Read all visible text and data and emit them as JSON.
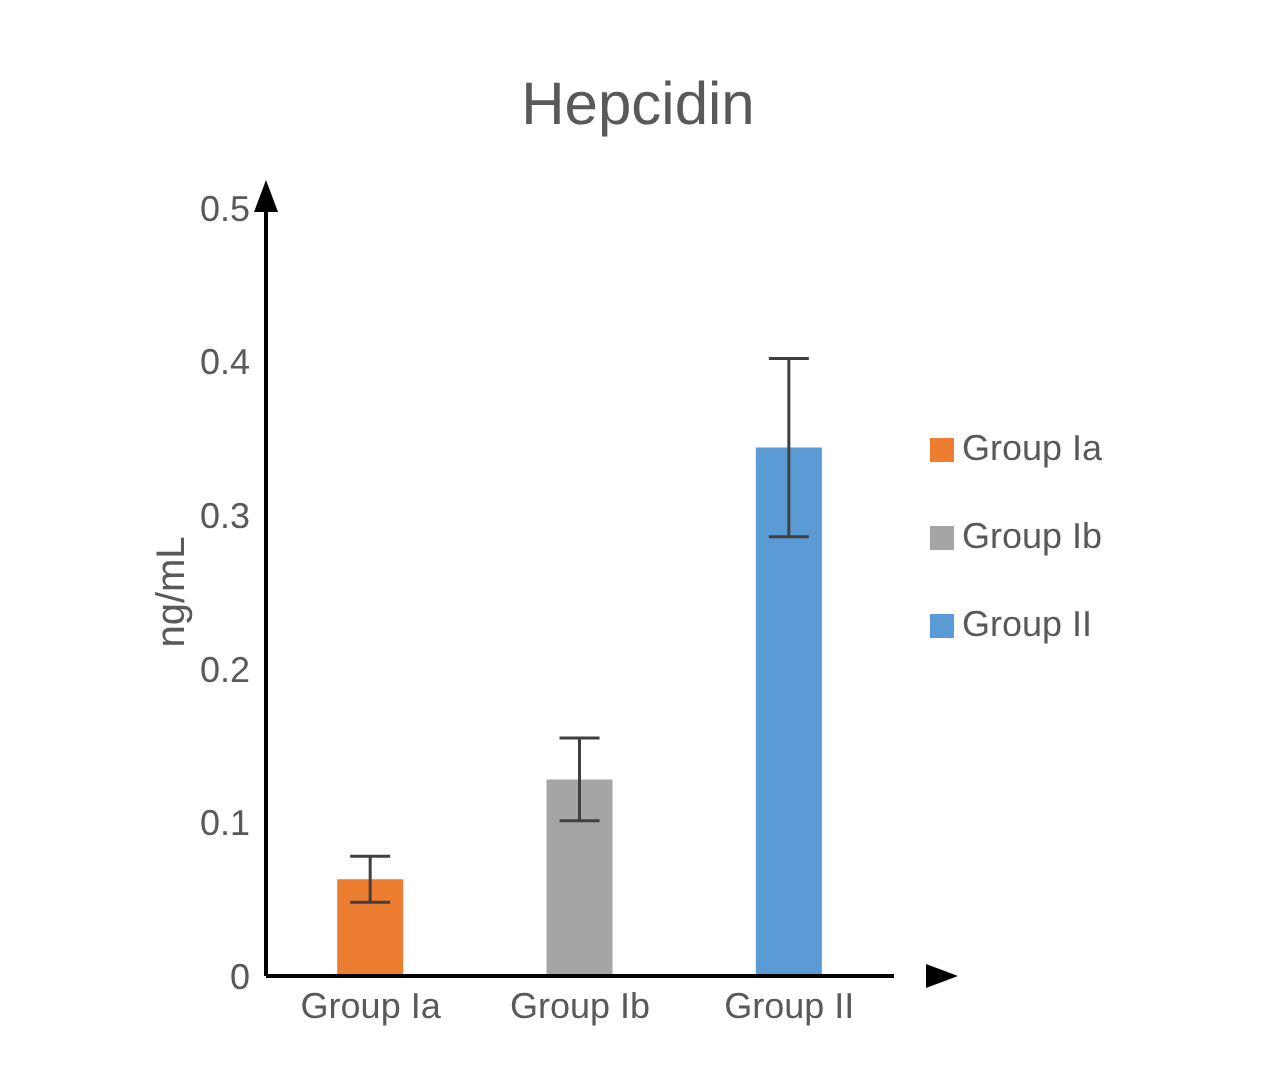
{
  "chart_data": {
    "type": "bar",
    "title": "Hepcidin",
    "ylabel": "ng/mL",
    "categories": [
      "Group Ia",
      "Group Ib",
      "Group II"
    ],
    "series": [
      {
        "name": "Group Ia",
        "color": "#ed7d31",
        "values": [
          0.063,
          null,
          null
        ],
        "errors": [
          0.015,
          null,
          null
        ]
      },
      {
        "name": "Group Ib",
        "color": "#a5a5a5",
        "values": [
          null,
          0.128,
          null
        ],
        "errors": [
          null,
          0.027,
          null
        ]
      },
      {
        "name": "Group II",
        "color": "#5b9bd5",
        "values": [
          null,
          null,
          0.344
        ],
        "errors": [
          null,
          null,
          0.058
        ]
      }
    ],
    "stacked": true,
    "ylim": [
      0,
      0.5
    ],
    "yticks": [
      0,
      0.1,
      0.2,
      0.3,
      0.4,
      0.5
    ],
    "grid": false,
    "legend": "right"
  }
}
